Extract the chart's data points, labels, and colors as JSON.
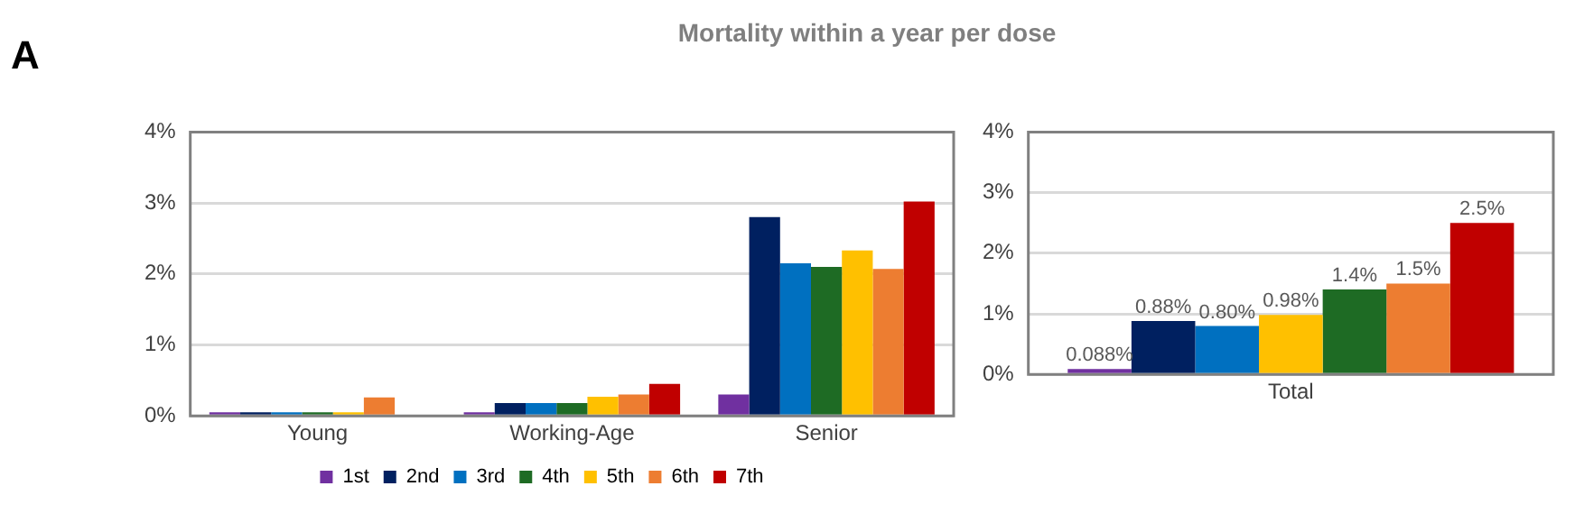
{
  "chart_data": [
    {
      "type": "bar",
      "title": "Mortality within a year per dose",
      "annotations": [
        "A"
      ],
      "categories": [
        "Young",
        "Working-Age",
        "Senior"
      ],
      "series": [
        {
          "name": "1st",
          "color": "#7030a0",
          "values": [
            0.02,
            0.02,
            0.3
          ]
        },
        {
          "name": "2nd",
          "color": "#002060",
          "values": [
            0.02,
            0.18,
            2.8
          ]
        },
        {
          "name": "3rd",
          "color": "#0070c0",
          "values": [
            0.02,
            0.18,
            2.15
          ]
        },
        {
          "name": "4th",
          "color": "#1e6b24",
          "values": [
            0.02,
            0.18,
            2.1
          ]
        },
        {
          "name": "5th",
          "color": "#ffc000",
          "values": [
            0.04,
            0.27,
            2.33
          ]
        },
        {
          "name": "6th",
          "color": "#ed7d31",
          "values": [
            0.26,
            0.3,
            2.07
          ]
        },
        {
          "name": "7th",
          "color": "#c00000",
          "values": [
            null,
            0.45,
            3.02
          ]
        }
      ],
      "ylim": [
        0,
        4
      ],
      "yticks": [
        {
          "value": 0,
          "label": "0%"
        },
        {
          "value": 1,
          "label": "1%"
        },
        {
          "value": 2,
          "label": "2%"
        },
        {
          "value": 3,
          "label": "3%"
        },
        {
          "value": 4,
          "label": "4%"
        }
      ],
      "grid": "y",
      "legend": "bottom"
    },
    {
      "type": "bar",
      "categories": [
        "Total"
      ],
      "series": [
        {
          "color": "#7030a0",
          "values": [
            0.088
          ],
          "value_labels": [
            "0.088%"
          ]
        },
        {
          "color": "#002060",
          "values": [
            0.88
          ],
          "value_labels": [
            "0.88%"
          ]
        },
        {
          "color": "#0070c0",
          "values": [
            0.8
          ],
          "value_labels": [
            "0.80%"
          ]
        },
        {
          "color": "#ffc000",
          "values": [
            0.98
          ],
          "value_labels": [
            "0.98%"
          ]
        },
        {
          "color": "#1e6b24",
          "values": [
            1.4
          ],
          "value_labels": [
            "1.4%"
          ]
        },
        {
          "color": "#ed7d31",
          "values": [
            1.5
          ],
          "value_labels": [
            "1.5%"
          ]
        },
        {
          "color": "#c00000",
          "values": [
            2.5
          ],
          "value_labels": [
            "2.5%"
          ]
        }
      ],
      "ylim": [
        0,
        4
      ],
      "yticks": [
        {
          "value": 0,
          "label": "0%"
        },
        {
          "value": 1,
          "label": "1%"
        },
        {
          "value": 2,
          "label": "2%"
        },
        {
          "value": 3,
          "label": "3%"
        },
        {
          "value": 4,
          "label": "4%"
        }
      ],
      "grid": "y"
    }
  ]
}
